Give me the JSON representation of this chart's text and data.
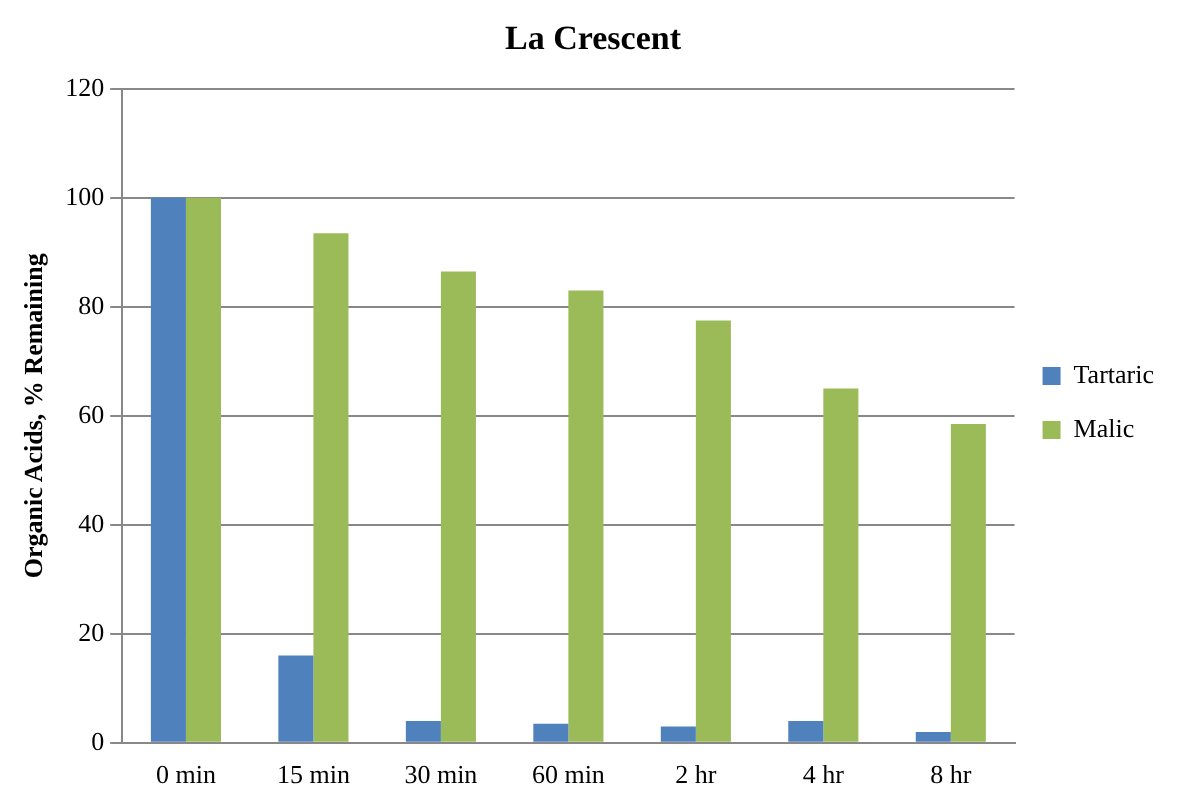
{
  "chart_data": {
    "type": "bar",
    "title": "La Crescent",
    "ylabel": "Organic Acids, % Remaining",
    "categories": [
      "0 min",
      "15 min",
      "30 min",
      "60 min",
      "2 hr",
      "4 hr",
      "8 hr"
    ],
    "series": [
      {
        "name": "Tartaric",
        "color": "#4f81bd",
        "values": [
          100,
          16,
          4,
          3.5,
          3,
          4,
          2
        ]
      },
      {
        "name": "Malic",
        "color": "#9bbb59",
        "values": [
          100,
          93.5,
          86.5,
          83,
          77.5,
          65,
          58.5
        ]
      }
    ],
    "ylim": [
      0,
      120
    ],
    "yticks": [
      0,
      20,
      40,
      60,
      80,
      100,
      120
    ],
    "grid": "y",
    "legend": "right"
  }
}
